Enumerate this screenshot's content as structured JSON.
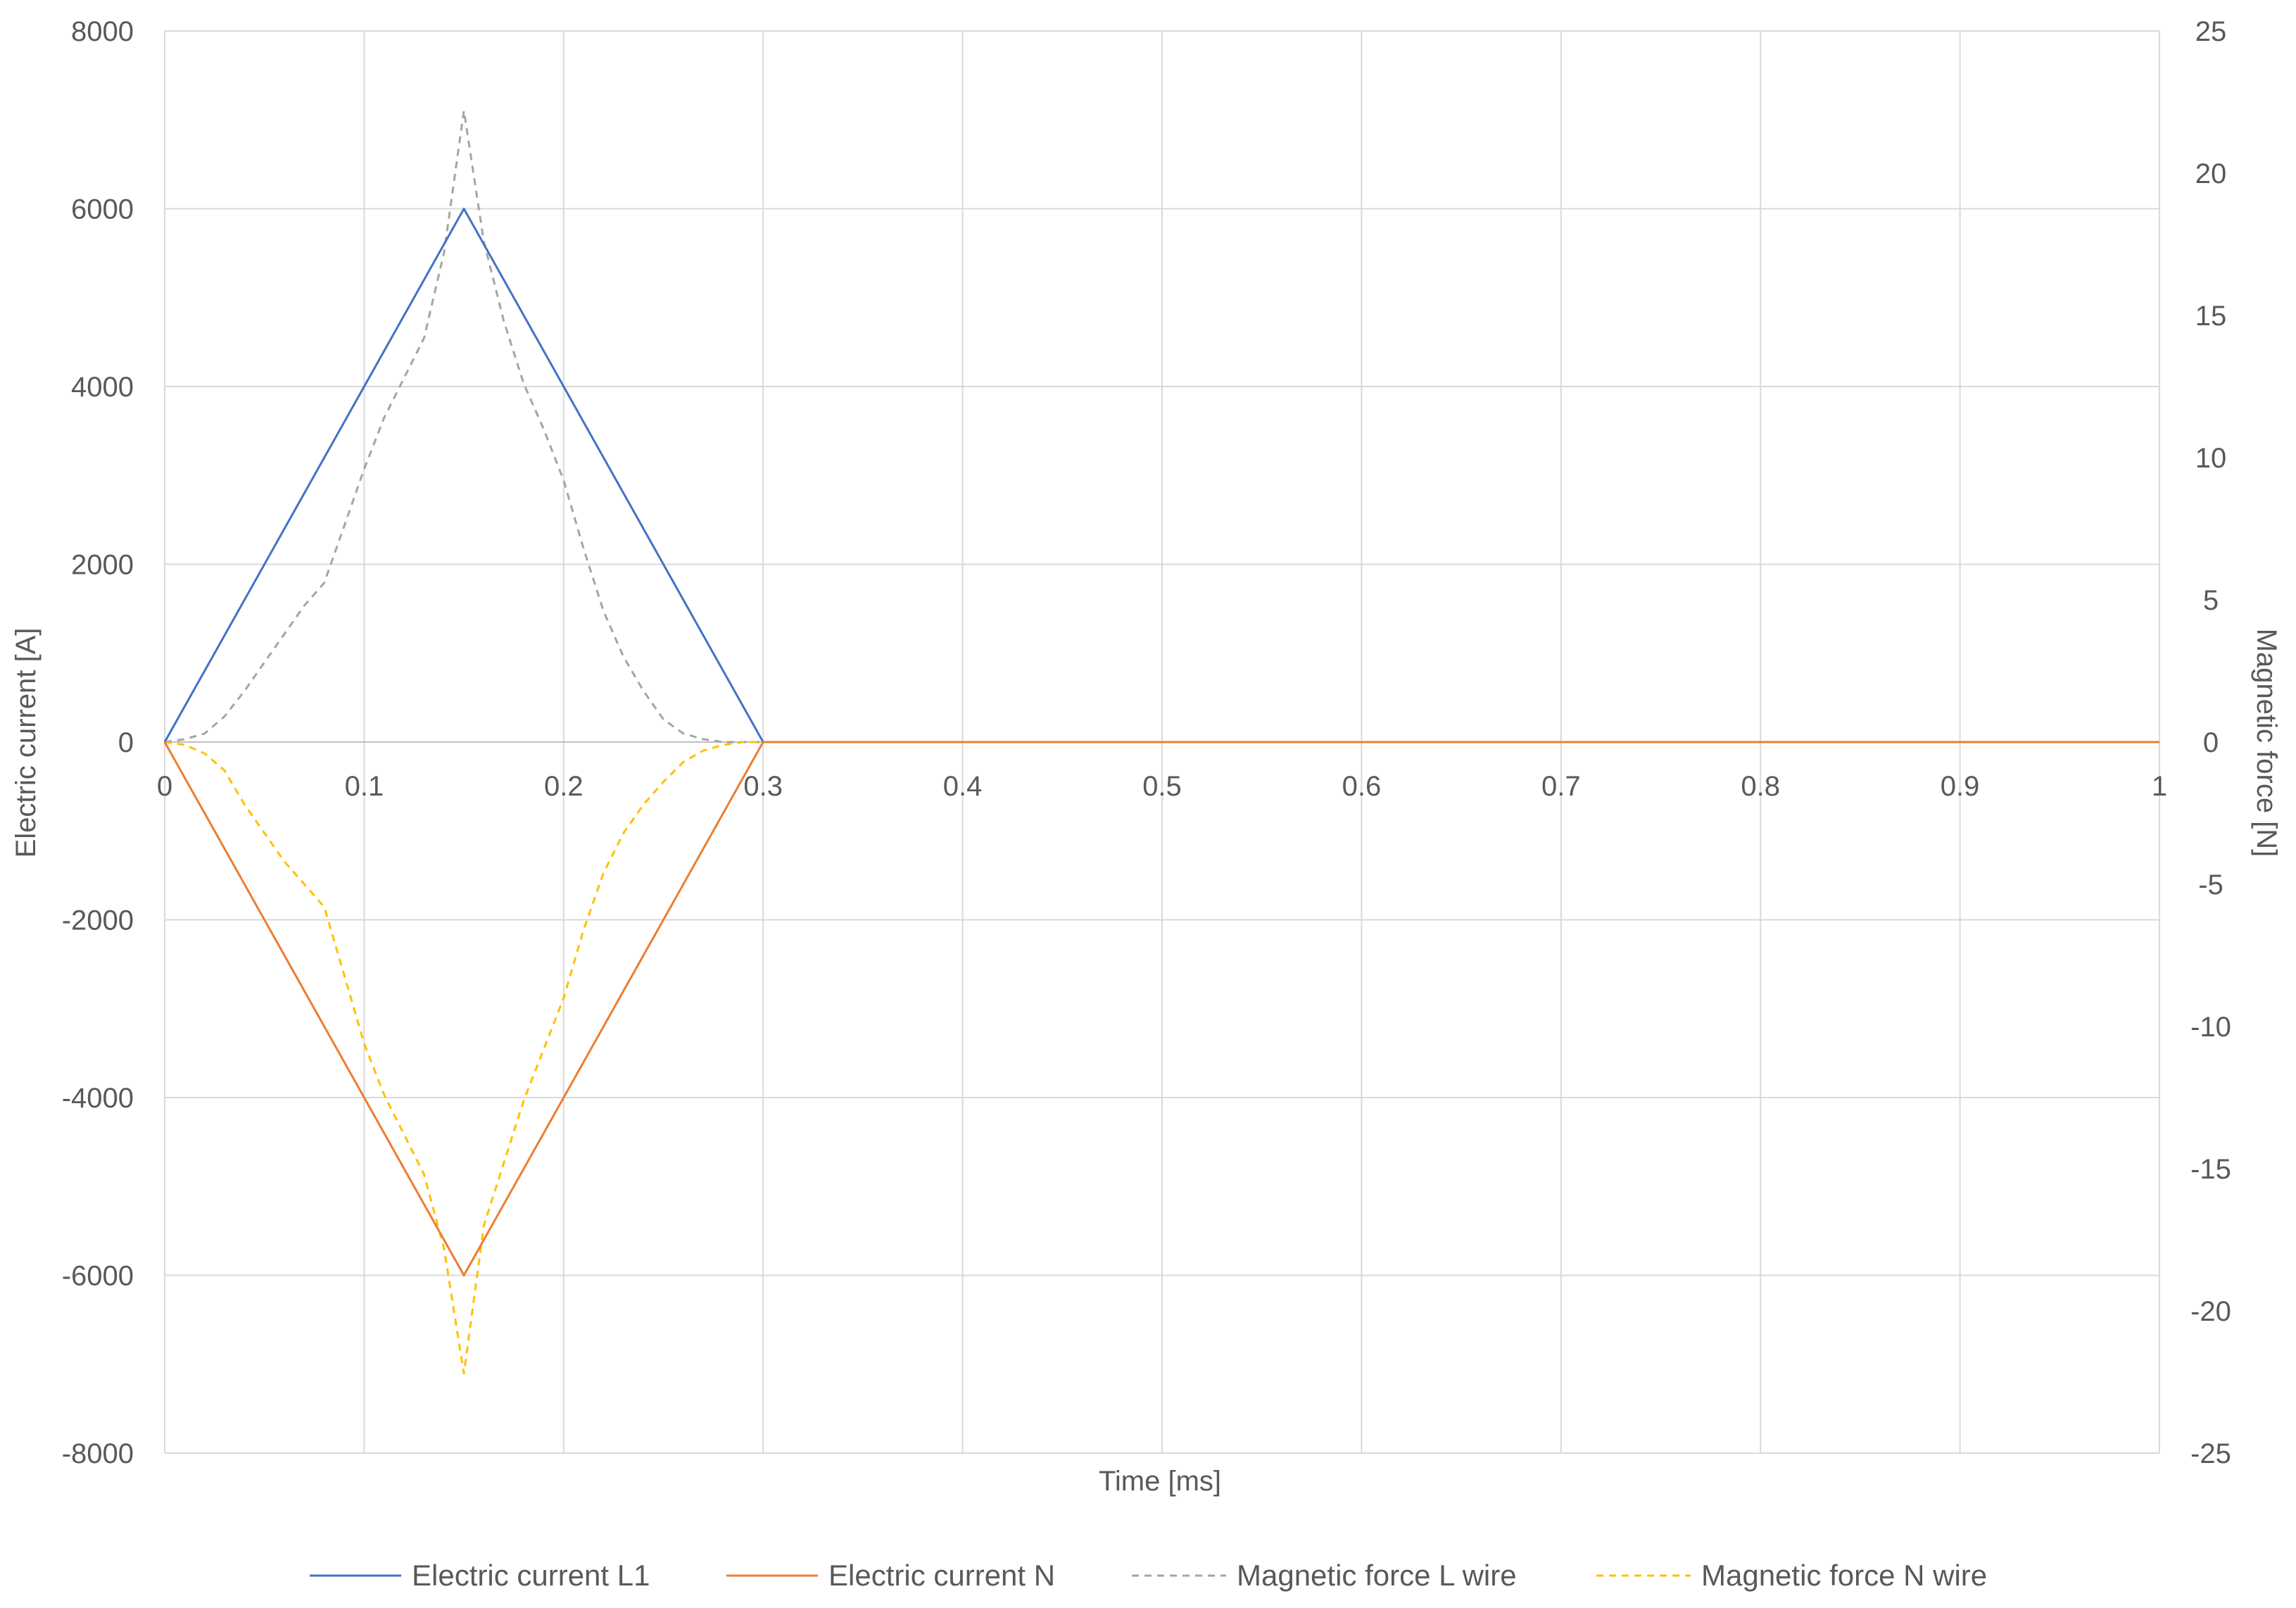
{
  "chart_data": {
    "type": "line",
    "xlabel": "Time [ms]",
    "ylabel": "Electric current [A]",
    "y2label": "Magnetic force [N]",
    "xlim": [
      0,
      1
    ],
    "ylim": [
      -8000,
      8000
    ],
    "y2lim": [
      -25,
      25
    ],
    "x_ticks": [
      "0",
      "0.1",
      "0.2",
      "0.3",
      "0.4",
      "0.5",
      "0.6",
      "0.7",
      "0.8",
      "0.9",
      "1"
    ],
    "y_ticks": [
      "8000",
      "6000",
      "4000",
      "2000",
      "0",
      "-2000",
      "-4000",
      "-6000",
      "-8000"
    ],
    "y2_ticks": [
      "25",
      "20",
      "15",
      "10",
      "5",
      "0",
      "-5",
      "-10",
      "-15",
      "-20",
      "-25"
    ],
    "grid": true,
    "legend_position": "bottom",
    "series": [
      {
        "name": "Electric current L1",
        "axis": "left",
        "color": "#4472C4",
        "style": "solid",
        "x": [
          0,
          0.15,
          0.3,
          1
        ],
        "y": [
          0,
          6000,
          0,
          0
        ]
      },
      {
        "name": "Electric current N",
        "axis": "left",
        "color": "#ED7D31",
        "style": "solid",
        "x": [
          0,
          0.15,
          0.3,
          1
        ],
        "y": [
          0,
          -6000,
          0,
          0
        ]
      },
      {
        "name": "Magnetic force L wire",
        "axis": "right",
        "color": "#A5A5A5",
        "style": "dashed",
        "x": [
          0,
          0.01,
          0.02,
          0.03,
          0.04,
          0.05,
          0.06,
          0.07,
          0.08,
          0.09,
          0.1,
          0.11,
          0.12,
          0.13,
          0.14,
          0.15,
          0.16,
          0.17,
          0.18,
          0.19,
          0.2,
          0.21,
          0.22,
          0.23,
          0.24,
          0.25,
          0.26,
          0.27,
          0.28,
          0.29,
          0.3,
          1
        ],
        "y": [
          0,
          0.1,
          0.3,
          0.9,
          1.8,
          2.8,
          3.8,
          4.8,
          5.6,
          7.6,
          9.6,
          11.4,
          12.8,
          14.2,
          17.2,
          22.2,
          17.6,
          14.8,
          12.6,
          11.0,
          9.2,
          6.8,
          4.6,
          3.0,
          1.8,
          0.8,
          0.3,
          0.1,
          0,
          0,
          0,
          0
        ]
      },
      {
        "name": "Magnetic force N wire",
        "axis": "right",
        "color": "#FFC000",
        "style": "dashed",
        "x": [
          0,
          0.01,
          0.02,
          0.03,
          0.04,
          0.05,
          0.06,
          0.07,
          0.08,
          0.09,
          0.1,
          0.11,
          0.12,
          0.13,
          0.14,
          0.15,
          0.16,
          0.17,
          0.18,
          0.19,
          0.2,
          0.21,
          0.22,
          0.23,
          0.24,
          0.25,
          0.26,
          0.27,
          0.28,
          0.29,
          0.3,
          1
        ],
        "y": [
          0,
          -0.1,
          -0.4,
          -1.0,
          -2.2,
          -3.2,
          -4.2,
          -5.0,
          -5.8,
          -8.2,
          -10.6,
          -12.4,
          -13.8,
          -15.2,
          -17.8,
          -22.2,
          -17.0,
          -14.8,
          -12.6,
          -10.8,
          -9.0,
          -6.6,
          -4.6,
          -3.2,
          -2.2,
          -1.4,
          -0.7,
          -0.3,
          -0.1,
          0,
          0,
          0
        ]
      }
    ]
  }
}
